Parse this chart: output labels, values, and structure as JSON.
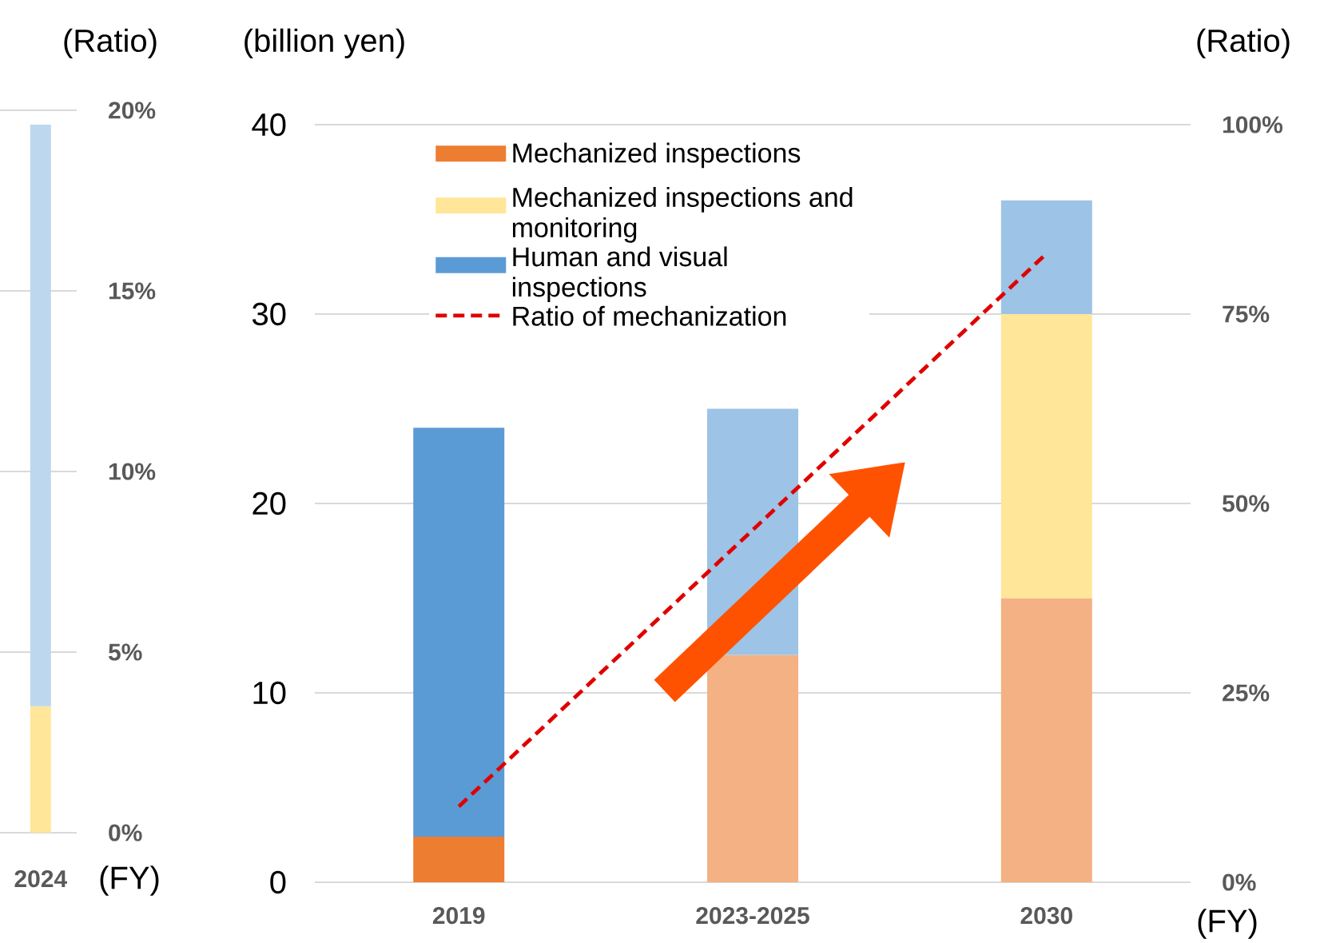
{
  "chart_data": [
    {
      "type": "bar",
      "stacked": true,
      "categories": [
        null,
        "2024"
      ],
      "xlabel": "(FY)",
      "y2label": "(Ratio)",
      "y2lim": [
        0,
        20
      ],
      "y2ticks": [
        {
          "value": 0,
          "label": "0%"
        },
        {
          "value": 5,
          "label": "5%"
        },
        {
          "value": 10,
          "label": "10%"
        },
        {
          "value": 15,
          "label": "15%"
        },
        {
          "value": 20,
          "label": "20%"
        }
      ],
      "grid": "y",
      "series": [
        {
          "color": "#ffe699",
          "values": [
            null,
            3.5
          ],
          "axis": "y2"
        },
        {
          "color": "#bdd7ee",
          "values": [
            null,
            16.1
          ],
          "axis": "y2"
        }
      ]
    },
    {
      "type": "bar",
      "stacked": true,
      "categories": [
        "2019",
        "2023-2025",
        "2030"
      ],
      "xlabel": "(FY)",
      "ylabel": "(billion yen)",
      "y2label": "(Ratio)",
      "ylim": [
        0,
        40
      ],
      "yticks": [
        0,
        10,
        20,
        30,
        40
      ],
      "y2lim": [
        0,
        100
      ],
      "y2ticks": [
        {
          "value": 0,
          "label": "0%"
        },
        {
          "value": 25,
          "label": "25%"
        },
        {
          "value": 50,
          "label": "50%"
        },
        {
          "value": 75,
          "label": "75%"
        },
        {
          "value": 100,
          "label": "100%"
        }
      ],
      "grid": "y",
      "legend": "top left",
      "series": [
        {
          "name": "Mechanized inspections",
          "color": "#ed7d31",
          "colors": [
            "#ed7d31",
            "#f4b183",
            "#f4b183"
          ],
          "values": [
            2.4,
            12,
            15
          ]
        },
        {
          "name": "Mechanized inspections and monitoring",
          "color": "#ffe699",
          "values": [
            0,
            0,
            15
          ]
        },
        {
          "name": "Human and visual inspections",
          "color": "#5b9bd5",
          "colors": [
            "#5b9bd5",
            "#9dc3e6",
            "#9dc3e6"
          ],
          "values": [
            21.6,
            13,
            6
          ]
        },
        {
          "name": "Ratio of mechanization",
          "type": "line",
          "color": "#e00000",
          "line_style": "dashed",
          "values": [
            10,
            46.5,
            83
          ],
          "axis": "y2"
        }
      ]
    }
  ]
}
